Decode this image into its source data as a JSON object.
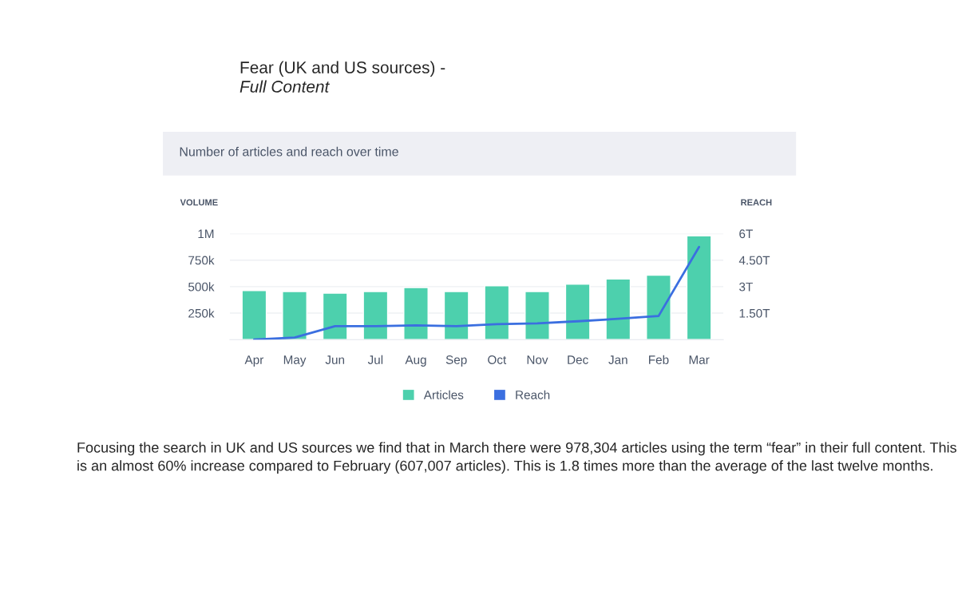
{
  "chart_data": {
    "type": "bar",
    "title": "Fear (UK and US sources) -\nFull Content",
    "subtitle": "Number of articles and reach over time",
    "ylabel": "VOLUME",
    "y2label": "REACH",
    "categories": [
      "Apr",
      "May",
      "Jun",
      "Jul",
      "Aug",
      "Sep",
      "Oct",
      "Nov",
      "Dec",
      "Jan",
      "Feb",
      "Mar"
    ],
    "series": [
      {
        "name": "Articles",
        "color": "#4dd0ad",
        "values": [
          462000,
          454000,
          438000,
          454000,
          492000,
          454000,
          508000,
          454000,
          523000,
          573000,
          607007,
          978304
        ]
      },
      {
        "name": "Reach",
        "type": "line",
        "axis": "y2",
        "color": "#3b6fe0",
        "values": [
          0.0,
          0.12,
          0.76,
          0.76,
          0.81,
          0.76,
          0.88,
          0.92,
          1.04,
          1.18,
          1.34,
          5.24
        ]
      }
    ],
    "ylim": [
      0,
      1000000
    ],
    "yticks": [
      {
        "value": 250000,
        "label": "250k"
      },
      {
        "value": 500000,
        "label": "500k"
      },
      {
        "value": 750000,
        "label": "750k"
      },
      {
        "value": 1000000,
        "label": "1M"
      }
    ],
    "y2lim": [
      0,
      6
    ],
    "y2ticks": [
      {
        "value": 1.5,
        "label": "1.50T"
      },
      {
        "value": 3,
        "label": "3T"
      },
      {
        "value": 4.5,
        "label": "4.50T"
      },
      {
        "value": 6,
        "label": "6T"
      }
    ],
    "grid": "y",
    "legend": "bottom",
    "marker": "none",
    "line_style": "solid",
    "annotations": [
      "Focusing the search in UK and US sources we find that in March there were 978,304 articles using the term “fear” in their full content. This is an almost 60% increase compared to February (607,007 articles). This is 1.8 times more than the average of the last twelve months."
    ]
  }
}
